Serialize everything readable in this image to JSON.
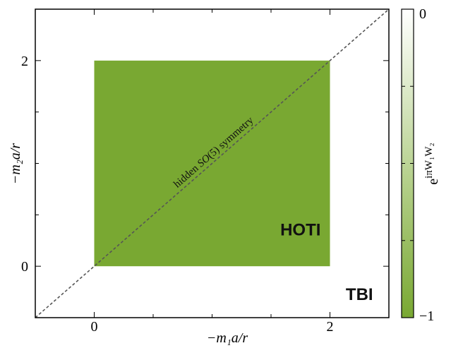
{
  "chart_data": {
    "type": "heatmap",
    "x_axis": {
      "label": "−m₁a/r",
      "range": [
        -0.5,
        2.5
      ],
      "ticks": [
        0,
        2
      ],
      "tick_labels": [
        "0",
        "2"
      ]
    },
    "y_axis": {
      "label": "−m₂a/r",
      "range": [
        -0.5,
        2.5
      ],
      "ticks": [
        0,
        2
      ],
      "tick_labels": [
        "0",
        "2"
      ]
    },
    "regions": [
      {
        "label": "HOTI",
        "x": [
          0,
          2
        ],
        "y": [
          0,
          2
        ],
        "value": -1
      },
      {
        "label": "TBI",
        "value": 0
      }
    ],
    "diagonal": {
      "label": "hidden SO(5) symmetry",
      "from": [
        -0.5,
        -0.5
      ],
      "to": [
        2.5,
        2.5
      ],
      "style": "dashed"
    },
    "colorbar": {
      "label": "e^{iπW₁W₂}",
      "range": [
        -1,
        0
      ],
      "tick_labels": [
        "0",
        "−1"
      ],
      "color_min": "#79a832",
      "color_max": "#ffffff"
    },
    "grid": false
  }
}
